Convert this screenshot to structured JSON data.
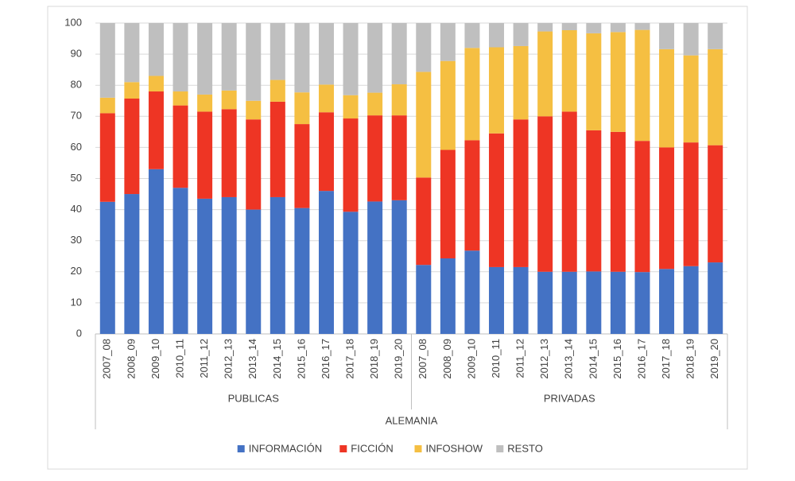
{
  "chart_data": {
    "type": "stacked_bar",
    "ylim": [
      0,
      100
    ],
    "yticks": [
      0,
      10,
      20,
      30,
      40,
      50,
      60,
      70,
      80,
      90,
      100
    ],
    "grid": true,
    "x_group": "ALEMANIA",
    "groups": [
      {
        "name": "PUBLICAS",
        "categories": [
          "2007_08",
          "2008_09",
          "2009_10",
          "2010_11",
          "2011_12",
          "2012_13",
          "2013_14",
          "2014_15",
          "2015_16",
          "2016_17",
          "2017_18",
          "2018_19",
          "2019_20"
        ]
      },
      {
        "name": "PRIVADAS",
        "categories": [
          "2007_08",
          "2008_09",
          "2009_10",
          "2010_11",
          "2011_12",
          "2012_13",
          "2013_14",
          "2014_15",
          "2015_16",
          "2016_17",
          "2017_18",
          "2018_19",
          "2019_20"
        ]
      }
    ],
    "legend": "bottom",
    "series": [
      {
        "name": "INFORMACIÓN",
        "color": "#4472c4",
        "values": [
          42.5,
          45,
          53,
          47,
          43.5,
          44,
          40,
          44,
          40.5,
          46,
          39.3,
          42.6,
          43,
          22.2,
          24.3,
          26.8,
          21.5,
          21.5,
          20,
          20,
          20.1,
          20,
          19.9,
          20.9,
          21.8,
          23
        ]
      },
      {
        "name": "FICCIÓN",
        "color": "#ee3524",
        "values": [
          28.5,
          30.7,
          25,
          26.5,
          28,
          28.3,
          29,
          30.7,
          27,
          25.3,
          30,
          27.7,
          27.3,
          28.1,
          34.9,
          35.5,
          43,
          47.5,
          50,
          51.5,
          45.4,
          45,
          42.2,
          39.1,
          39.8,
          37.7
        ]
      },
      {
        "name": "INFOSHOW",
        "color": "#f5bf42",
        "values": [
          5,
          5.3,
          5,
          4.5,
          5.5,
          6,
          6,
          7,
          10.2,
          8.9,
          7.5,
          7.3,
          10,
          34,
          28.6,
          29.7,
          27.7,
          23.6,
          27.3,
          26.2,
          31.2,
          32.1,
          35.7,
          31.6,
          28,
          30.9
        ]
      },
      {
        "name": "RESTO",
        "color": "#bfbfbf",
        "values": [
          24,
          19,
          17,
          22,
          23,
          21.7,
          25,
          18.3,
          22.3,
          19.8,
          23.2,
          22.4,
          19.7,
          15.7,
          12.2,
          8,
          7.8,
          7.4,
          2.7,
          2.3,
          3.3,
          2.9,
          2.2,
          8.4,
          10.4,
          8.4
        ]
      }
    ]
  }
}
